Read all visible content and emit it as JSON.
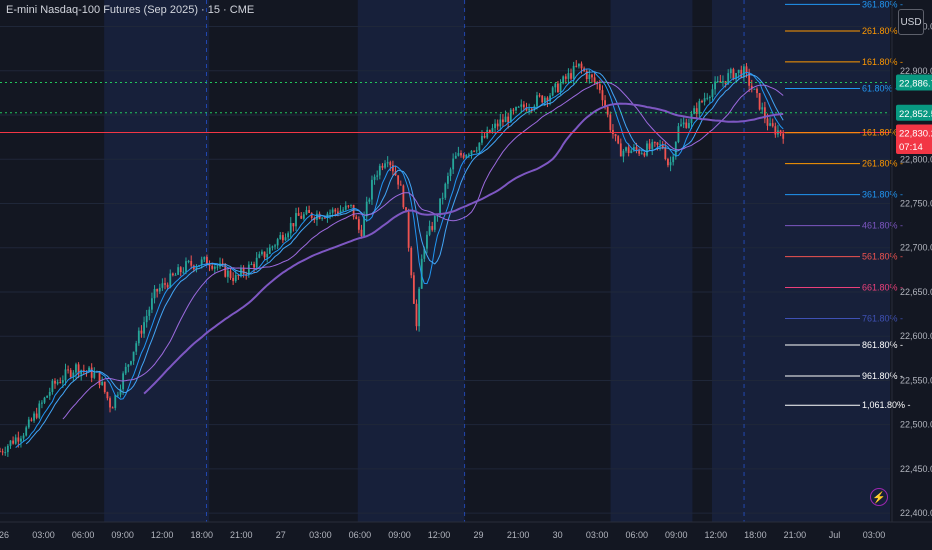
{
  "header": {
    "title": "E-mini Nasdaq-100 Futures (Sep 2025) · 15 · CME",
    "currency": "USD"
  },
  "chart_data": {
    "type": "candlestick",
    "ylim": [
      22390,
      22980
    ],
    "price_ticks": [
      "22,950.00",
      "22,900.00",
      "22,850.00",
      "22,800.00",
      "22,750.00",
      "22,700.00",
      "22,650.00",
      "22,600.00",
      "22,550.00",
      "22,500.00",
      "22,450.00",
      "22,400.00"
    ],
    "price_tick_values": [
      22950,
      22900,
      22850,
      22800,
      22750,
      22700,
      22650,
      22600,
      22550,
      22500,
      22450,
      22400
    ],
    "time_ticks": [
      "26",
      "03:00",
      "06:00",
      "09:00",
      "12:00",
      "18:00",
      "21:00",
      "27",
      "03:00",
      "06:00",
      "09:00",
      "12:00",
      "29",
      "21:00",
      "30",
      "03:00",
      "06:00",
      "09:00",
      "12:00",
      "18:00",
      "21:00",
      "Jul",
      "03:00"
    ],
    "session_bands": [
      [
        0,
        0.117
      ],
      [
        0.235,
        0.402
      ],
      [
        0.522,
        0.686
      ],
      [
        0.778,
        0.8
      ]
    ],
    "candle_path": [
      [
        0,
        22470
      ],
      [
        0.03,
        22495
      ],
      [
        0.06,
        22545
      ],
      [
        0.085,
        22565
      ],
      [
        0.11,
        22555
      ],
      [
        0.125,
        22520
      ],
      [
        0.15,
        22585
      ],
      [
        0.175,
        22650
      ],
      [
        0.21,
        22680
      ],
      [
        0.235,
        22685
      ],
      [
        0.265,
        22665
      ],
      [
        0.3,
        22695
      ],
      [
        0.335,
        22735
      ],
      [
        0.37,
        22740
      ],
      [
        0.395,
        22745
      ],
      [
        0.405,
        22715
      ],
      [
        0.42,
        22780
      ],
      [
        0.435,
        22805
      ],
      [
        0.448,
        22775
      ],
      [
        0.455,
        22745
      ],
      [
        0.462,
        22675
      ],
      [
        0.468,
        22610
      ],
      [
        0.475,
        22700
      ],
      [
        0.49,
        22735
      ],
      [
        0.51,
        22800
      ],
      [
        0.535,
        22815
      ],
      [
        0.56,
        22840
      ],
      [
        0.59,
        22860
      ],
      [
        0.62,
        22875
      ],
      [
        0.65,
        22905
      ],
      [
        0.675,
        22880
      ],
      [
        0.685,
        22840
      ],
      [
        0.695,
        22810
      ],
      [
        0.72,
        22810
      ],
      [
        0.745,
        22815
      ],
      [
        0.752,
        22790
      ],
      [
        0.762,
        22835
      ],
      [
        0.775,
        22845
      ],
      [
        0.795,
        22875
      ],
      [
        0.82,
        22895
      ],
      [
        0.835,
        22900
      ],
      [
        0.85,
        22870
      ],
      [
        0.865,
        22835
      ],
      [
        0.88,
        22830
      ]
    ],
    "price_labels": [
      {
        "text": "22,886.75",
        "value": 22886.75,
        "color": "#089981"
      },
      {
        "text": "22,852.50",
        "value": 22852.5,
        "color": "#089981"
      },
      {
        "text": "22,830.25",
        "value": 22830.25,
        "color": "#f23645"
      },
      {
        "text": "07:14",
        "value": 22815,
        "color": "#f23645"
      }
    ],
    "horizontal_lines": [
      {
        "value": 22886.75,
        "color": "#22c55e",
        "style": "dotted"
      },
      {
        "value": 22852.5,
        "color": "#22c55e",
        "style": "dotted"
      },
      {
        "value": 22830.25,
        "color": "#f23645",
        "style": "solid"
      }
    ],
    "fib_levels": [
      {
        "label": "361.80%",
        "y_value": 22975,
        "color": "#2196f3"
      },
      {
        "label": "261.80%",
        "y_value": 22945,
        "color": "#ff9800"
      },
      {
        "label": "161.80%",
        "y_value": 22910,
        "color": "#ff9800"
      },
      {
        "label": "61.80%",
        "y_value": 22880,
        "color": "#2196f3"
      },
      {
        "label": "161.80%",
        "y_value": 22830,
        "color": "#ff9800"
      },
      {
        "label": "261.80%",
        "y_value": 22795,
        "color": "#ff9800"
      },
      {
        "label": "361.80%",
        "y_value": 22760,
        "color": "#2196f3"
      },
      {
        "label": "461.80%",
        "y_value": 22725,
        "color": "#7e57c2"
      },
      {
        "label": "561.80%",
        "y_value": 22690,
        "color": "#ef5350"
      },
      {
        "label": "661.80%",
        "y_value": 22655,
        "color": "#ec407a"
      },
      {
        "label": "761.80%",
        "y_value": 22620,
        "color": "#3f51b5"
      },
      {
        "label": "861.80%",
        "y_value": 22590,
        "color": "#ffffff"
      },
      {
        "label": "961.80%",
        "y_value": 22555,
        "color": "#ffffff"
      },
      {
        "label": "1,061.80%",
        "y_value": 22522,
        "color": "#ffffff"
      }
    ],
    "colors": {
      "up": "#26a69a",
      "down": "#ef5350",
      "ma_fast": "#2196f3",
      "ma_mid": "#42a5f5",
      "ma_slow": "#9c6ade",
      "ma_long": "#7e57c2"
    }
  }
}
